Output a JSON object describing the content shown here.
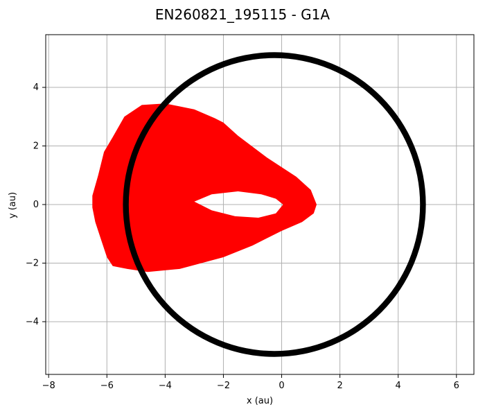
{
  "chart_data": {
    "type": "scatter",
    "title": "EN260821_195115 - G1A",
    "xlabel": "x (au)",
    "ylabel": "y (au)",
    "xlim": [
      -8.1,
      6.6
    ],
    "ylim": [
      -5.8,
      5.8
    ],
    "xticks": [
      -8,
      -6,
      -4,
      -2,
      0,
      2,
      4,
      6
    ],
    "yticks": [
      -4,
      -2,
      0,
      2,
      4
    ],
    "xtick_labels": [
      "−8",
      "−6",
      "−4",
      "−2",
      "0",
      "2",
      "4",
      "6"
    ],
    "ytick_labels": [
      "−4",
      "−2",
      "0",
      "2",
      "4"
    ],
    "grid": true,
    "colors": {
      "comet_orbit": "#ff0000",
      "planet_orbit": "#000000",
      "grid": "#b0b0b0"
    },
    "series": [
      {
        "color": "#ff0000",
        "outer_boundary": [
          [
            1.2,
            0.0
          ],
          [
            1.0,
            0.5
          ],
          [
            0.5,
            0.95
          ],
          [
            -0.5,
            1.6
          ],
          [
            -1.5,
            2.35
          ],
          [
            -2.0,
            2.8
          ],
          [
            -2.3,
            2.95
          ],
          [
            -3.0,
            3.25
          ],
          [
            -4.0,
            3.45
          ],
          [
            -4.8,
            3.4
          ],
          [
            -5.4,
            3.0
          ],
          [
            -5.8,
            2.3
          ],
          [
            -6.1,
            1.8
          ],
          [
            -6.3,
            1.0
          ],
          [
            -6.5,
            0.3
          ],
          [
            -6.5,
            -0.1
          ],
          [
            -6.4,
            -0.6
          ],
          [
            -6.2,
            -1.2
          ],
          [
            -6.0,
            -1.8
          ],
          [
            -5.8,
            -2.1
          ],
          [
            -5.3,
            -2.2
          ],
          [
            -4.6,
            -2.3
          ],
          [
            -3.5,
            -2.2
          ],
          [
            -2.0,
            -1.8
          ],
          [
            -1.0,
            -1.4
          ],
          [
            0.0,
            -0.9
          ],
          [
            0.7,
            -0.6
          ],
          [
            1.1,
            -0.3
          ],
          [
            1.2,
            0.0
          ]
        ],
        "inner_boundary": [
          [
            -3.0,
            0.1
          ],
          [
            -2.4,
            0.35
          ],
          [
            -1.5,
            0.45
          ],
          [
            -0.7,
            0.35
          ],
          [
            -0.2,
            0.2
          ],
          [
            0.05,
            0.0
          ],
          [
            -0.2,
            -0.3
          ],
          [
            -0.8,
            -0.45
          ],
          [
            -1.6,
            -0.4
          ],
          [
            -2.4,
            -0.2
          ],
          [
            -3.0,
            0.1
          ]
        ]
      },
      {
        "color": "#000000",
        "center": [
          -0.25,
          0.0
        ],
        "radius_inner": 5.0,
        "radius_outer": 5.2
      }
    ]
  }
}
